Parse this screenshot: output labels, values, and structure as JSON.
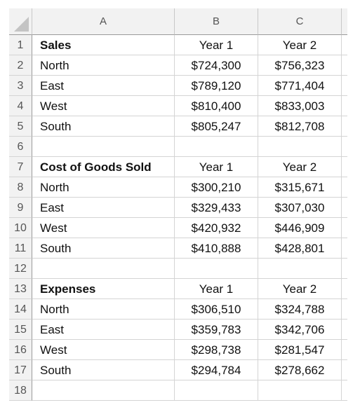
{
  "columns": {
    "a": "A",
    "b": "B",
    "c": "C"
  },
  "rows": [
    {
      "num": "1",
      "a": "Sales",
      "b": "Year 1",
      "c": "Year 2",
      "bold": true
    },
    {
      "num": "2",
      "a": "North",
      "b": "$724,300",
      "c": "$756,323"
    },
    {
      "num": "3",
      "a": "East",
      "b": "$789,120",
      "c": "$771,404"
    },
    {
      "num": "4",
      "a": "West",
      "b": "$810,400",
      "c": "$833,003"
    },
    {
      "num": "5",
      "a": "South",
      "b": "$805,247",
      "c": "$812,708"
    },
    {
      "num": "6",
      "a": "",
      "b": "",
      "c": ""
    },
    {
      "num": "7",
      "a": "Cost of Goods Sold",
      "b": "Year 1",
      "c": "Year 2",
      "bold": true
    },
    {
      "num": "8",
      "a": "North",
      "b": "$300,210",
      "c": "$315,671"
    },
    {
      "num": "9",
      "a": "East",
      "b": "$329,433",
      "c": "$307,030"
    },
    {
      "num": "10",
      "a": "West",
      "b": "$420,932",
      "c": "$446,909"
    },
    {
      "num": "11",
      "a": "South",
      "b": "$410,888",
      "c": "$428,801"
    },
    {
      "num": "12",
      "a": "",
      "b": "",
      "c": ""
    },
    {
      "num": "13",
      "a": "Expenses",
      "b": "Year 1",
      "c": "Year 2",
      "bold": true
    },
    {
      "num": "14",
      "a": "North",
      "b": "$306,510",
      "c": "$324,788"
    },
    {
      "num": "15",
      "a": "East",
      "b": "$359,783",
      "c": "$342,706"
    },
    {
      "num": "16",
      "a": "West",
      "b": "$298,738",
      "c": "$281,547"
    },
    {
      "num": "17",
      "a": "South",
      "b": "$294,784",
      "c": "$278,662"
    },
    {
      "num": "18",
      "a": "",
      "b": "",
      "c": ""
    }
  ]
}
